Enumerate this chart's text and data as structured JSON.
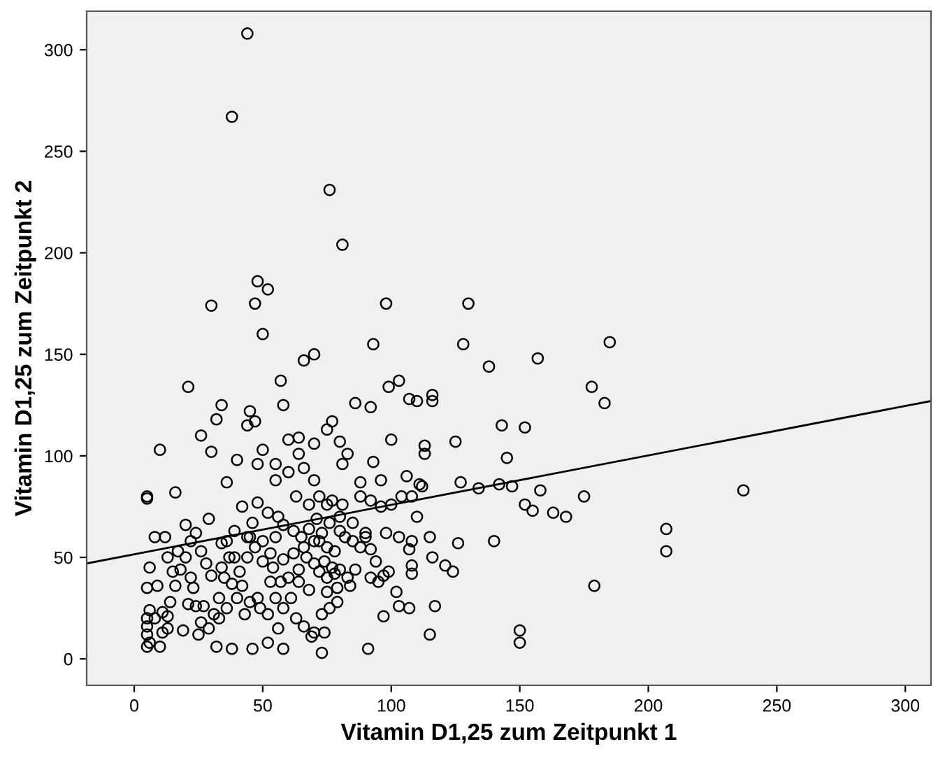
{
  "chart_data": {
    "type": "scatter",
    "xlabel": "Vitamin D1,25 zum Zeitpunkt 1",
    "ylabel": "Vitamin D1,25 zum Zeitpunkt 2",
    "xlim": [
      -18.5,
      310
    ],
    "ylim": [
      -13,
      319
    ],
    "xticks": [
      0,
      50,
      100,
      150,
      200,
      250,
      300
    ],
    "yticks": [
      0,
      50,
      100,
      150,
      200,
      250,
      300
    ],
    "grid": false,
    "legend": false,
    "series": [
      {
        "color": "#000000",
        "marker": "circle",
        "x": [
          44,
          38,
          76,
          81,
          48,
          52,
          30,
          47,
          98,
          130,
          50,
          93,
          128,
          185,
          157,
          138,
          66,
          70,
          103,
          99,
          57,
          178,
          183,
          21,
          10,
          34,
          45,
          58,
          86,
          92,
          107,
          110,
          116,
          116,
          143,
          152,
          75,
          77,
          44,
          47,
          32,
          26,
          60,
          64,
          70,
          83,
          80,
          100,
          113,
          113,
          125,
          145,
          81,
          93,
          106,
          111,
          108,
          127,
          134,
          142,
          147,
          158,
          175,
          207,
          207,
          237,
          179,
          150,
          150,
          163,
          168,
          152,
          155,
          140,
          126,
          115,
          116,
          117,
          115,
          121,
          124,
          103,
          107,
          97,
          91,
          107,
          108,
          108,
          108,
          103,
          98,
          96,
          92,
          88,
          88,
          92,
          90,
          81,
          80,
          75,
          77,
          72,
          70,
          66,
          64,
          60,
          55,
          55,
          50,
          48,
          40,
          36,
          30,
          16,
          12,
          5,
          5,
          8,
          6,
          5,
          6,
          5,
          5,
          5,
          5,
          6,
          10,
          11,
          13,
          13,
          14,
          16,
          18,
          20,
          17,
          22,
          24,
          26,
          28,
          22,
          23,
          21,
          24,
          26,
          25,
          29,
          31,
          33,
          30,
          34,
          37,
          36,
          39,
          44,
          46,
          42,
          48,
          52,
          56,
          58,
          62,
          65,
          68,
          72,
          75,
          78,
          82,
          85,
          88,
          86,
          83,
          78,
          75,
          72,
          70,
          67,
          64,
          60,
          57,
          54,
          50,
          47,
          44,
          41,
          38,
          35,
          40,
          45,
          49,
          52,
          55,
          58,
          61,
          63,
          66,
          70,
          73,
          76,
          79,
          75,
          68,
          64,
          56,
          52,
          46,
          38,
          32,
          58,
          73,
          79,
          84,
          95,
          99,
          102,
          97,
          74,
          69,
          45,
          50,
          53,
          58,
          62,
          66,
          70,
          74,
          77,
          80,
          43,
          48,
          33,
          27,
          19,
          11,
          8,
          9,
          15,
          13,
          20,
          29,
          34,
          39,
          42,
          36,
          53,
          55,
          63,
          68,
          71,
          73,
          76,
          80,
          85,
          90,
          92,
          94,
          100,
          104,
          110,
          112,
          96
        ],
        "values": [
          308,
          267,
          231,
          204,
          186,
          182,
          174,
          175,
          175,
          175,
          160,
          155,
          155,
          156,
          148,
          144,
          147,
          150,
          137,
          134,
          137,
          134,
          126,
          134,
          103,
          125,
          122,
          125,
          126,
          124,
          128,
          127,
          130,
          127,
          115,
          114,
          113,
          117,
          115,
          117,
          118,
          110,
          108,
          109,
          106,
          101,
          107,
          108,
          105,
          101,
          107,
          99,
          96,
          97,
          90,
          86,
          80,
          87,
          84,
          86,
          85,
          83,
          80,
          64,
          53,
          83,
          36,
          14,
          8,
          72,
          70,
          76,
          73,
          58,
          57,
          60,
          50,
          26,
          12,
          46,
          43,
          26,
          25,
          21,
          5,
          54,
          46,
          42,
          58,
          60,
          62,
          75,
          78,
          87,
          80,
          54,
          60,
          76,
          63,
          76,
          78,
          80,
          88,
          94,
          101,
          92,
          96,
          88,
          103,
          96,
          98,
          87,
          102,
          82,
          60,
          79,
          80,
          60,
          45,
          35,
          24,
          20,
          16,
          12,
          6,
          8,
          6,
          23,
          15,
          21,
          28,
          36,
          44,
          50,
          53,
          58,
          62,
          53,
          47,
          40,
          35,
          27,
          26,
          18,
          12,
          15,
          22,
          30,
          41,
          45,
          50,
          58,
          63,
          60,
          67,
          75,
          77,
          72,
          70,
          66,
          63,
          60,
          64,
          58,
          55,
          53,
          60,
          58,
          55,
          44,
          40,
          42,
          40,
          43,
          47,
          50,
          44,
          40,
          38,
          45,
          48,
          55,
          50,
          43,
          37,
          40,
          30,
          28,
          25,
          22,
          30,
          25,
          30,
          20,
          16,
          13,
          22,
          25,
          28,
          33,
          34,
          38,
          15,
          8,
          5,
          5,
          6,
          5,
          3,
          35,
          36,
          38,
          43,
          33,
          41,
          13,
          11,
          60,
          58,
          52,
          49,
          52,
          55,
          58,
          48,
          45,
          44,
          22,
          30,
          20,
          26,
          14,
          13,
          20,
          36,
          43,
          50,
          66,
          69,
          57,
          50,
          36,
          25,
          38,
          60,
          80,
          76,
          69,
          62,
          67,
          70,
          67,
          62,
          40,
          48,
          76,
          80,
          70,
          85,
          88
        ]
      },
      {
        "type": "line",
        "color": "#000000",
        "marker": "none",
        "line_style": "solid",
        "x": [
          -18.5,
          310
        ],
        "values": [
          47,
          127
        ]
      }
    ]
  }
}
